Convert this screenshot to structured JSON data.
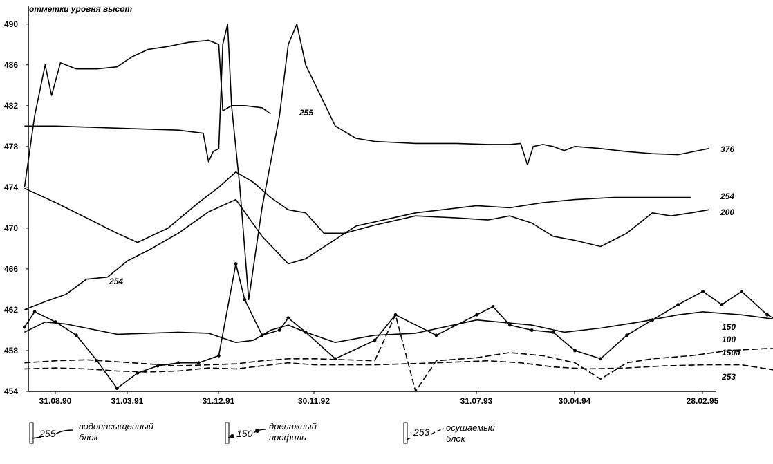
{
  "chart_data": {
    "type": "line",
    "title": "отметки уровня высот",
    "xlabel": "",
    "ylabel": "",
    "ylim": [
      454,
      491
    ],
    "yticks": [
      454,
      458,
      462,
      466,
      470,
      474,
      478,
      482,
      486,
      490
    ],
    "xticks": [
      "31.08.90",
      "31.03.91",
      "31.12.91",
      "30.11.92",
      "31.07.93",
      "30.04.94",
      "28.02.95"
    ],
    "grid": false,
    "series": [
      {
        "name": "376",
        "style": "solid",
        "color": "#000000",
        "points": [
          [
            "1990-06-01",
            480
          ],
          [
            "1990-09-01",
            480
          ],
          [
            "1990-12-01",
            479.9
          ],
          [
            "1991-03-01",
            479.8
          ],
          [
            "1991-06-01",
            479.7
          ],
          [
            "1991-09-01",
            479.6
          ],
          [
            "1991-11-15",
            479.3
          ],
          [
            "1991-12-01",
            476.5
          ],
          [
            "1991-12-15",
            477.5
          ],
          [
            "1992-01-01",
            477.8
          ],
          [
            "1992-01-15",
            488
          ],
          [
            "1992-02-01",
            490
          ],
          [
            "1992-02-15",
            482
          ],
          [
            "1992-03-15",
            474
          ],
          [
            "1992-04-15",
            463
          ],
          [
            "1992-06-01",
            472
          ],
          [
            "1992-08-01",
            481
          ],
          [
            "1992-09-01",
            488
          ],
          [
            "1992-10-01",
            490
          ],
          [
            "1992-11-01",
            486
          ],
          [
            "1993-01-01",
            480
          ],
          [
            "1993-02-01",
            478.8
          ],
          [
            "1993-03-01",
            478.5
          ],
          [
            "1993-05-01",
            478.3
          ],
          [
            "1993-07-01",
            478.3
          ],
          [
            "1993-09-01",
            478.2
          ],
          [
            "1993-11-01",
            478.2
          ],
          [
            "1993-12-01",
            478.3
          ],
          [
            "1993-12-20",
            476.2
          ],
          [
            "1994-01-05",
            478
          ],
          [
            "1994-02-01",
            478.2
          ],
          [
            "1994-03-01",
            478
          ],
          [
            "1994-04-01",
            477.6
          ],
          [
            "1994-05-01",
            478
          ],
          [
            "1994-07-01",
            477.8
          ],
          [
            "1994-09-01",
            477.5
          ],
          [
            "1994-11-01",
            477.3
          ],
          [
            "1995-01-01",
            477.2
          ],
          [
            "1995-03-15",
            477.8
          ]
        ]
      },
      {
        "name": "254",
        "style": "solid",
        "color": "#000000",
        "points": [
          [
            "1990-06-01",
            462
          ],
          [
            "1990-08-01",
            462.8
          ],
          [
            "1990-10-01",
            463.5
          ],
          [
            "1990-12-01",
            465
          ],
          [
            "1991-02-01",
            465.2
          ],
          [
            "1991-04-01",
            466.8
          ],
          [
            "1991-06-01",
            467.8
          ],
          [
            "1991-09-01",
            469.5
          ],
          [
            "1991-12-01",
            471.6
          ],
          [
            "1992-03-01",
            472.8
          ],
          [
            "1992-06-01",
            469.2
          ],
          [
            "1992-09-01",
            466.5
          ],
          [
            "1992-11-01",
            467
          ],
          [
            "1993-02-01",
            470.2
          ],
          [
            "1993-05-01",
            471.5
          ],
          [
            "1993-08-01",
            472.2
          ],
          [
            "1993-11-01",
            472
          ],
          [
            "1994-02-01",
            472.5
          ],
          [
            "1994-05-01",
            472.8
          ],
          [
            "1994-08-01",
            473
          ],
          [
            "1994-11-01",
            473
          ],
          [
            "1995-02-01",
            473
          ]
        ]
      },
      {
        "name": "200",
        "style": "solid",
        "color": "#000000",
        "points": [
          [
            "1990-06-01",
            473.9
          ],
          [
            "1990-09-01",
            472.5
          ],
          [
            "1990-12-01",
            471
          ],
          [
            "1991-03-01",
            469.5
          ],
          [
            "1991-05-01",
            468.6
          ],
          [
            "1991-08-01",
            470
          ],
          [
            "1991-11-01",
            472.5
          ],
          [
            "1992-01-01",
            474
          ],
          [
            "1992-03-01",
            475.5
          ],
          [
            "1992-05-01",
            474.5
          ],
          [
            "1992-07-01",
            473
          ],
          [
            "1992-09-01",
            471.8
          ],
          [
            "1992-11-01",
            471.5
          ],
          [
            "1992-12-15",
            469.5
          ],
          [
            "1993-01-15",
            469.5
          ],
          [
            "1993-03-01",
            470.3
          ],
          [
            "1993-05-01",
            471.2
          ],
          [
            "1993-07-01",
            471
          ],
          [
            "1993-09-01",
            470.8
          ],
          [
            "1993-11-01",
            471.2
          ],
          [
            "1994-01-01",
            470.5
          ],
          [
            "1994-03-01",
            469.2
          ],
          [
            "1994-05-01",
            468.8
          ],
          [
            "1994-07-01",
            468.2
          ],
          [
            "1994-09-01",
            469.5
          ],
          [
            "1994-11-01",
            471.5
          ],
          [
            "1994-12-15",
            471.2
          ],
          [
            "1995-02-01",
            471.5
          ],
          [
            "1995-03-15",
            471.8
          ]
        ]
      },
      {
        "name": "255",
        "style": "solid",
        "color": "#000000",
        "points": [
          [
            "1990-06-01",
            474
          ],
          [
            "1990-07-01",
            481
          ],
          [
            "1990-08-01",
            486
          ],
          [
            "1990-08-20",
            483
          ],
          [
            "1990-09-15",
            486.2
          ],
          [
            "1990-11-01",
            485.6
          ],
          [
            "1991-01-01",
            485.6
          ],
          [
            "1991-03-01",
            485.8
          ],
          [
            "1991-04-15",
            486.8
          ],
          [
            "1991-06-01",
            487.5
          ],
          [
            "1991-08-01",
            487.8
          ],
          [
            "1991-10-01",
            488.2
          ],
          [
            "1991-12-01",
            488.4
          ],
          [
            "1992-01-01",
            488
          ],
          [
            "1992-01-15",
            481.5
          ],
          [
            "1992-02-15",
            482
          ],
          [
            "1992-04-01",
            482
          ],
          [
            "1992-06-01",
            481.8
          ],
          [
            "1992-07-01",
            481.2
          ]
        ]
      },
      {
        "name": "150",
        "style": "solid-markers",
        "color": "#000000",
        "points": [
          [
            "1990-06-01",
            460.3
          ],
          [
            "1990-07-01",
            461.8
          ],
          [
            "1990-09-01",
            460.8
          ],
          [
            "1990-11-01",
            459.5
          ],
          [
            "1991-01-01",
            457
          ],
          [
            "1991-03-01",
            454.3
          ],
          [
            "1991-05-01",
            455.8
          ],
          [
            "1991-07-01",
            456.5
          ],
          [
            "1991-09-01",
            456.8
          ],
          [
            "1991-11-01",
            456.8
          ],
          [
            "1992-01-01",
            457.5
          ],
          [
            "1992-03-01",
            466.5
          ],
          [
            "1992-04-01",
            463
          ],
          [
            "1992-06-01",
            459.5
          ],
          [
            "1992-08-01",
            460
          ],
          [
            "1992-09-01",
            461.2
          ],
          [
            "1992-11-01",
            459.8
          ],
          [
            "1993-01-01",
            457.2
          ],
          [
            "1993-03-01",
            459
          ],
          [
            "1993-04-01",
            461.5
          ],
          [
            "1993-06-01",
            459.5
          ],
          [
            "1993-08-01",
            461.5
          ],
          [
            "1993-09-15",
            462.3
          ],
          [
            "1993-11-01",
            460.5
          ],
          [
            "1994-01-01",
            460
          ],
          [
            "1994-03-01",
            459.8
          ],
          [
            "1994-05-01",
            458
          ],
          [
            "1994-07-01",
            457.2
          ],
          [
            "1994-09-01",
            459.5
          ],
          [
            "1994-11-01",
            461
          ],
          [
            "1995-01-01",
            462.5
          ],
          [
            "1995-03-01",
            463.8
          ],
          [
            "1995-04-15",
            462.5
          ],
          [
            "1995-06-01",
            463.8
          ],
          [
            "1995-08-01",
            461.5
          ],
          [
            "1995-10-01",
            460.2
          ]
        ]
      },
      {
        "name": "100",
        "style": "solid",
        "color": "#000000",
        "points": [
          [
            "1990-06-01",
            459.8
          ],
          [
            "1990-08-01",
            460.8
          ],
          [
            "1990-10-01",
            460.6
          ],
          [
            "1990-12-01",
            460.2
          ],
          [
            "1991-03-01",
            459.6
          ],
          [
            "1991-06-01",
            459.7
          ],
          [
            "1991-09-01",
            459.8
          ],
          [
            "1991-12-01",
            459.7
          ],
          [
            "1992-03-01",
            458.8
          ],
          [
            "1992-05-01",
            459
          ],
          [
            "1992-07-01",
            460
          ],
          [
            "1992-09-01",
            460.5
          ],
          [
            "1992-11-01",
            459.8
          ],
          [
            "1993-01-01",
            458.8
          ],
          [
            "1993-03-01",
            459.5
          ],
          [
            "1993-05-01",
            459.7
          ],
          [
            "1993-08-01",
            461
          ],
          [
            "1993-10-01",
            460.8
          ],
          [
            "1994-01-01",
            460.5
          ],
          [
            "1994-04-01",
            459.8
          ],
          [
            "1994-07-01",
            460.2
          ],
          [
            "1994-10-01",
            460.8
          ],
          [
            "1995-01-01",
            461.5
          ],
          [
            "1995-03-01",
            461.8
          ],
          [
            "1995-06-01",
            461.5
          ],
          [
            "1995-09-01",
            461
          ],
          [
            "1995-11-01",
            459.8
          ]
        ]
      },
      {
        "name": "150а",
        "style": "dashed",
        "color": "#000000",
        "points": [
          [
            "1990-06-01",
            456.8
          ],
          [
            "1990-09-01",
            457
          ],
          [
            "1990-12-01",
            457.1
          ],
          [
            "1991-03-01",
            456.9
          ],
          [
            "1991-06-01",
            456.7
          ],
          [
            "1991-09-01",
            456.5
          ],
          [
            "1991-12-01",
            456.6
          ],
          [
            "1992-03-01",
            456.7
          ],
          [
            "1992-06-01",
            457
          ],
          [
            "1992-09-01",
            457.2
          ],
          [
            "1992-12-01",
            457.2
          ],
          [
            "1993-03-01",
            457
          ],
          [
            "1993-04-01",
            461.5
          ],
          [
            "1993-05-01",
            454
          ],
          [
            "1993-06-01",
            457
          ],
          [
            "1993-08-01",
            457.3
          ],
          [
            "1993-11-01",
            457.8
          ],
          [
            "1994-02-01",
            457.5
          ],
          [
            "1994-05-01",
            456.8
          ],
          [
            "1994-07-01",
            455.2
          ],
          [
            "1994-09-01",
            456.8
          ],
          [
            "1994-11-01",
            457.2
          ],
          [
            "1995-02-01",
            457.5
          ],
          [
            "1995-05-01",
            458
          ],
          [
            "1995-08-01",
            458.2
          ],
          [
            "1995-11-01",
            458.2
          ]
        ]
      },
      {
        "name": "253",
        "style": "dashed",
        "color": "#000000",
        "points": [
          [
            "1990-06-01",
            456.2
          ],
          [
            "1990-09-01",
            456.3
          ],
          [
            "1990-12-01",
            456.2
          ],
          [
            "1991-03-01",
            456
          ],
          [
            "1991-06-01",
            455.9
          ],
          [
            "1991-09-01",
            456
          ],
          [
            "1991-12-01",
            456.3
          ],
          [
            "1992-03-01",
            456.2
          ],
          [
            "1992-06-01",
            456.5
          ],
          [
            "1992-09-01",
            456.8
          ],
          [
            "1992-12-01",
            456.6
          ],
          [
            "1993-03-01",
            456.6
          ],
          [
            "1993-06-01",
            456.8
          ],
          [
            "1993-09-01",
            457
          ],
          [
            "1993-12-01",
            456.8
          ],
          [
            "1994-03-01",
            456.4
          ],
          [
            "1994-06-01",
            456.2
          ],
          [
            "1994-09-01",
            456.3
          ],
          [
            "1994-12-01",
            456.5
          ],
          [
            "1995-03-01",
            456.6
          ],
          [
            "1995-06-01",
            456.6
          ],
          [
            "1995-09-01",
            456
          ],
          [
            "1995-11-01",
            455.9
          ]
        ]
      }
    ],
    "labels_on_chart": [
      "376",
      "254",
      "200",
      "255",
      "254",
      "150",
      "100",
      "150а",
      "253"
    ]
  },
  "legend": [
    {
      "num": "255",
      "text_line1": "водонасыщенный",
      "text_line2": "блок",
      "style": "solid"
    },
    {
      "num": "150",
      "text_line1": "дренажный",
      "text_line2": "профиль",
      "style": "solid-markers"
    },
    {
      "num": "253",
      "text_line1": "осушаемый",
      "text_line2": "блок",
      "style": "dashed"
    }
  ]
}
